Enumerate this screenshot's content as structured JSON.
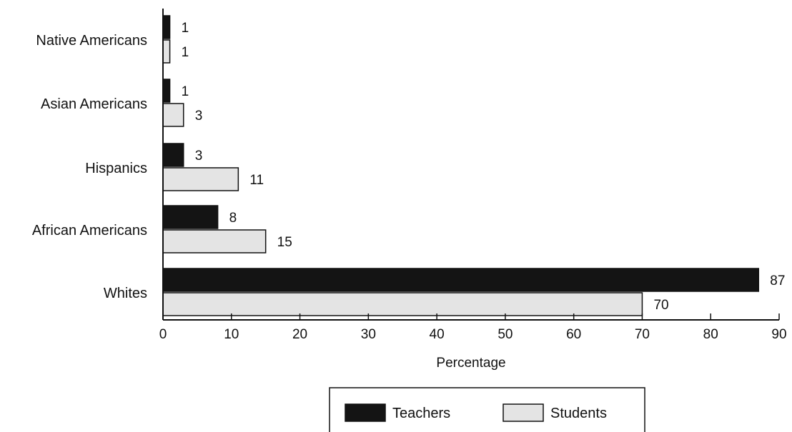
{
  "chart_data": {
    "type": "bar",
    "orientation": "horizontal",
    "title": "",
    "xlabel": "Percentage",
    "ylabel": "",
    "xlim": [
      0,
      90
    ],
    "x_ticks": [
      0,
      10,
      20,
      30,
      40,
      50,
      60,
      70,
      80,
      90
    ],
    "grid": false,
    "legend_position": "bottom-center",
    "categories": [
      "Native Americans",
      "Asian Americans",
      "Hispanics",
      "African Americans",
      "Whites"
    ],
    "series": [
      {
        "name": "Teachers",
        "values": [
          1,
          1,
          3,
          8,
          87
        ],
        "color": "#141414"
      },
      {
        "name": "Students",
        "values": [
          1,
          3,
          11,
          15,
          70
        ],
        "color": "#e4e4e4"
      }
    ]
  }
}
